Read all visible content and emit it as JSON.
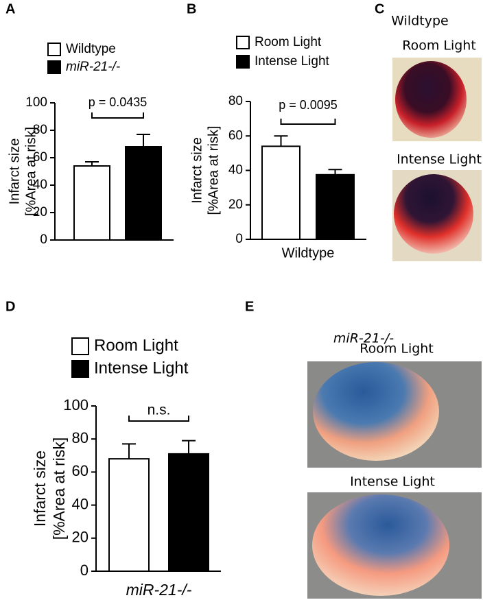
{
  "chart_data": [
    {
      "type": "bar",
      "categories": [
        null
      ],
      "ylabel": [
        "Infarct size",
        "[%Area at risk]"
      ],
      "series": [
        {
          "name": "Wildtype",
          "color": "#ffffff",
          "values": [
            54
          ],
          "errors": [
            3
          ]
        },
        {
          "name": "miR-21-/-",
          "color": "#000000",
          "values": [
            68
          ],
          "errors": [
            9
          ]
        }
      ],
      "ylim": [
        0,
        100
      ],
      "yticks": [
        0,
        20,
        40,
        60,
        80,
        100
      ],
      "annotation": "p = 0.0435"
    },
    {
      "type": "bar",
      "categories": [
        "Wildtype"
      ],
      "ylabel": [
        "Infarct size",
        "[%Area at risk]"
      ],
      "series": [
        {
          "name": "Room Light",
          "color": "#ffffff",
          "values": [
            54
          ],
          "errors": [
            6
          ]
        },
        {
          "name": "Intense Light",
          "color": "#000000",
          "values": [
            37.5
          ],
          "errors": [
            3
          ]
        }
      ],
      "ylim": [
        0,
        80
      ],
      "yticks": [
        0,
        20,
        40,
        60,
        80
      ],
      "annotation": "p = 0.0095"
    },
    {
      "type": "bar",
      "categories": [
        "miR-21-/-"
      ],
      "ylabel": [
        "Infarct size",
        "[%Area at risk]"
      ],
      "series": [
        {
          "name": "Room Light",
          "color": "#ffffff",
          "values": [
            68
          ],
          "errors": [
            9
          ]
        },
        {
          "name": "Intense Light",
          "color": "#000000",
          "values": [
            71
          ],
          "errors": [
            8
          ]
        }
      ],
      "ylim": [
        0,
        100
      ],
      "yticks": [
        0,
        20,
        40,
        60,
        80,
        100
      ],
      "annotation": "n.s."
    }
  ],
  "panels": {
    "labels": [
      "A",
      "B",
      "C",
      "D",
      "E"
    ],
    "C": {
      "title": "Wildtype",
      "captions": [
        "Room Light",
        "Intense Light"
      ]
    },
    "E": {
      "title": "miR-21-/-",
      "captions": [
        "Room Light",
        "Intense Light"
      ]
    }
  }
}
